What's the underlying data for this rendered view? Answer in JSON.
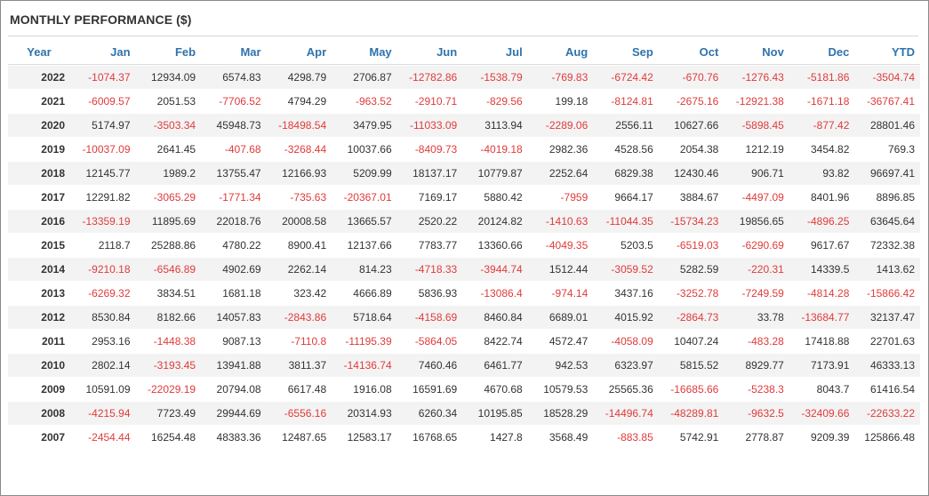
{
  "title": "MONTHLY PERFORMANCE ($)",
  "colors": {
    "header": "#2f73ad",
    "negative": "#e03b3b",
    "positive": "#333333",
    "stripe": "#f3f3f3"
  },
  "columns": [
    "Year",
    "Jan",
    "Feb",
    "Mar",
    "Apr",
    "May",
    "Jun",
    "Jul",
    "Aug",
    "Sep",
    "Oct",
    "Nov",
    "Dec",
    "YTD"
  ],
  "rows": [
    [
      "2022",
      "-1074.37",
      "12934.09",
      "6574.83",
      "4298.79",
      "2706.87",
      "-12782.86",
      "-1538.79",
      "-769.83",
      "-6724.42",
      "-670.76",
      "-1276.43",
      "-5181.86",
      "-3504.74"
    ],
    [
      "2021",
      "-6009.57",
      "2051.53",
      "-7706.52",
      "4794.29",
      "-963.52",
      "-2910.71",
      "-829.56",
      "199.18",
      "-8124.81",
      "-2675.16",
      "-12921.38",
      "-1671.18",
      "-36767.41"
    ],
    [
      "2020",
      "5174.97",
      "-3503.34",
      "45948.73",
      "-18498.54",
      "3479.95",
      "-11033.09",
      "3113.94",
      "-2289.06",
      "2556.11",
      "10627.66",
      "-5898.45",
      "-877.42",
      "28801.46"
    ],
    [
      "2019",
      "-10037.09",
      "2641.45",
      "-407.68",
      "-3268.44",
      "10037.66",
      "-8409.73",
      "-4019.18",
      "2982.36",
      "4528.56",
      "2054.38",
      "1212.19",
      "3454.82",
      "769.3"
    ],
    [
      "2018",
      "12145.77",
      "1989.2",
      "13755.47",
      "12166.93",
      "5209.99",
      "18137.17",
      "10779.87",
      "2252.64",
      "6829.38",
      "12430.46",
      "906.71",
      "93.82",
      "96697.41"
    ],
    [
      "2017",
      "12291.82",
      "-3065.29",
      "-1771.34",
      "-735.63",
      "-20367.01",
      "7169.17",
      "5880.42",
      "-7959",
      "9664.17",
      "3884.67",
      "-4497.09",
      "8401.96",
      "8896.85"
    ],
    [
      "2016",
      "-13359.19",
      "11895.69",
      "22018.76",
      "20008.58",
      "13665.57",
      "2520.22",
      "20124.82",
      "-1410.63",
      "-11044.35",
      "-15734.23",
      "19856.65",
      "-4896.25",
      "63645.64"
    ],
    [
      "2015",
      "2118.7",
      "25288.86",
      "4780.22",
      "8900.41",
      "12137.66",
      "7783.77",
      "13360.66",
      "-4049.35",
      "5203.5",
      "-6519.03",
      "-6290.69",
      "9617.67",
      "72332.38"
    ],
    [
      "2014",
      "-9210.18",
      "-6546.89",
      "4902.69",
      "2262.14",
      "814.23",
      "-4718.33",
      "-3944.74",
      "1512.44",
      "-3059.52",
      "5282.59",
      "-220.31",
      "14339.5",
      "1413.62"
    ],
    [
      "2013",
      "-6269.32",
      "3834.51",
      "1681.18",
      "323.42",
      "4666.89",
      "5836.93",
      "-13086.4",
      "-974.14",
      "3437.16",
      "-3252.78",
      "-7249.59",
      "-4814.28",
      "-15866.42"
    ],
    [
      "2012",
      "8530.84",
      "8182.66",
      "14057.83",
      "-2843.86",
      "5718.64",
      "-4158.69",
      "8460.84",
      "6689.01",
      "4015.92",
      "-2864.73",
      "33.78",
      "-13684.77",
      "32137.47"
    ],
    [
      "2011",
      "2953.16",
      "-1448.38",
      "9087.13",
      "-7110.8",
      "-11195.39",
      "-5864.05",
      "8422.74",
      "4572.47",
      "-4058.09",
      "10407.24",
      "-483.28",
      "17418.88",
      "22701.63"
    ],
    [
      "2010",
      "2802.14",
      "-3193.45",
      "13941.88",
      "3811.37",
      "-14136.74",
      "7460.46",
      "6461.77",
      "942.53",
      "6323.97",
      "5815.52",
      "8929.77",
      "7173.91",
      "46333.13"
    ],
    [
      "2009",
      "10591.09",
      "-22029.19",
      "20794.08",
      "6617.48",
      "1916.08",
      "16591.69",
      "4670.68",
      "10579.53",
      "25565.36",
      "-16685.66",
      "-5238.3",
      "8043.7",
      "61416.54"
    ],
    [
      "2008",
      "-4215.94",
      "7723.49",
      "29944.69",
      "-6556.16",
      "20314.93",
      "6260.34",
      "10195.85",
      "18528.29",
      "-14496.74",
      "-48289.81",
      "-9632.5",
      "-32409.66",
      "-22633.22"
    ],
    [
      "2007",
      "-2454.44",
      "16254.48",
      "48383.36",
      "12487.65",
      "12583.17",
      "16768.65",
      "1427.8",
      "3568.49",
      "-883.85",
      "5742.91",
      "2778.87",
      "9209.39",
      "125866.48"
    ]
  ]
}
